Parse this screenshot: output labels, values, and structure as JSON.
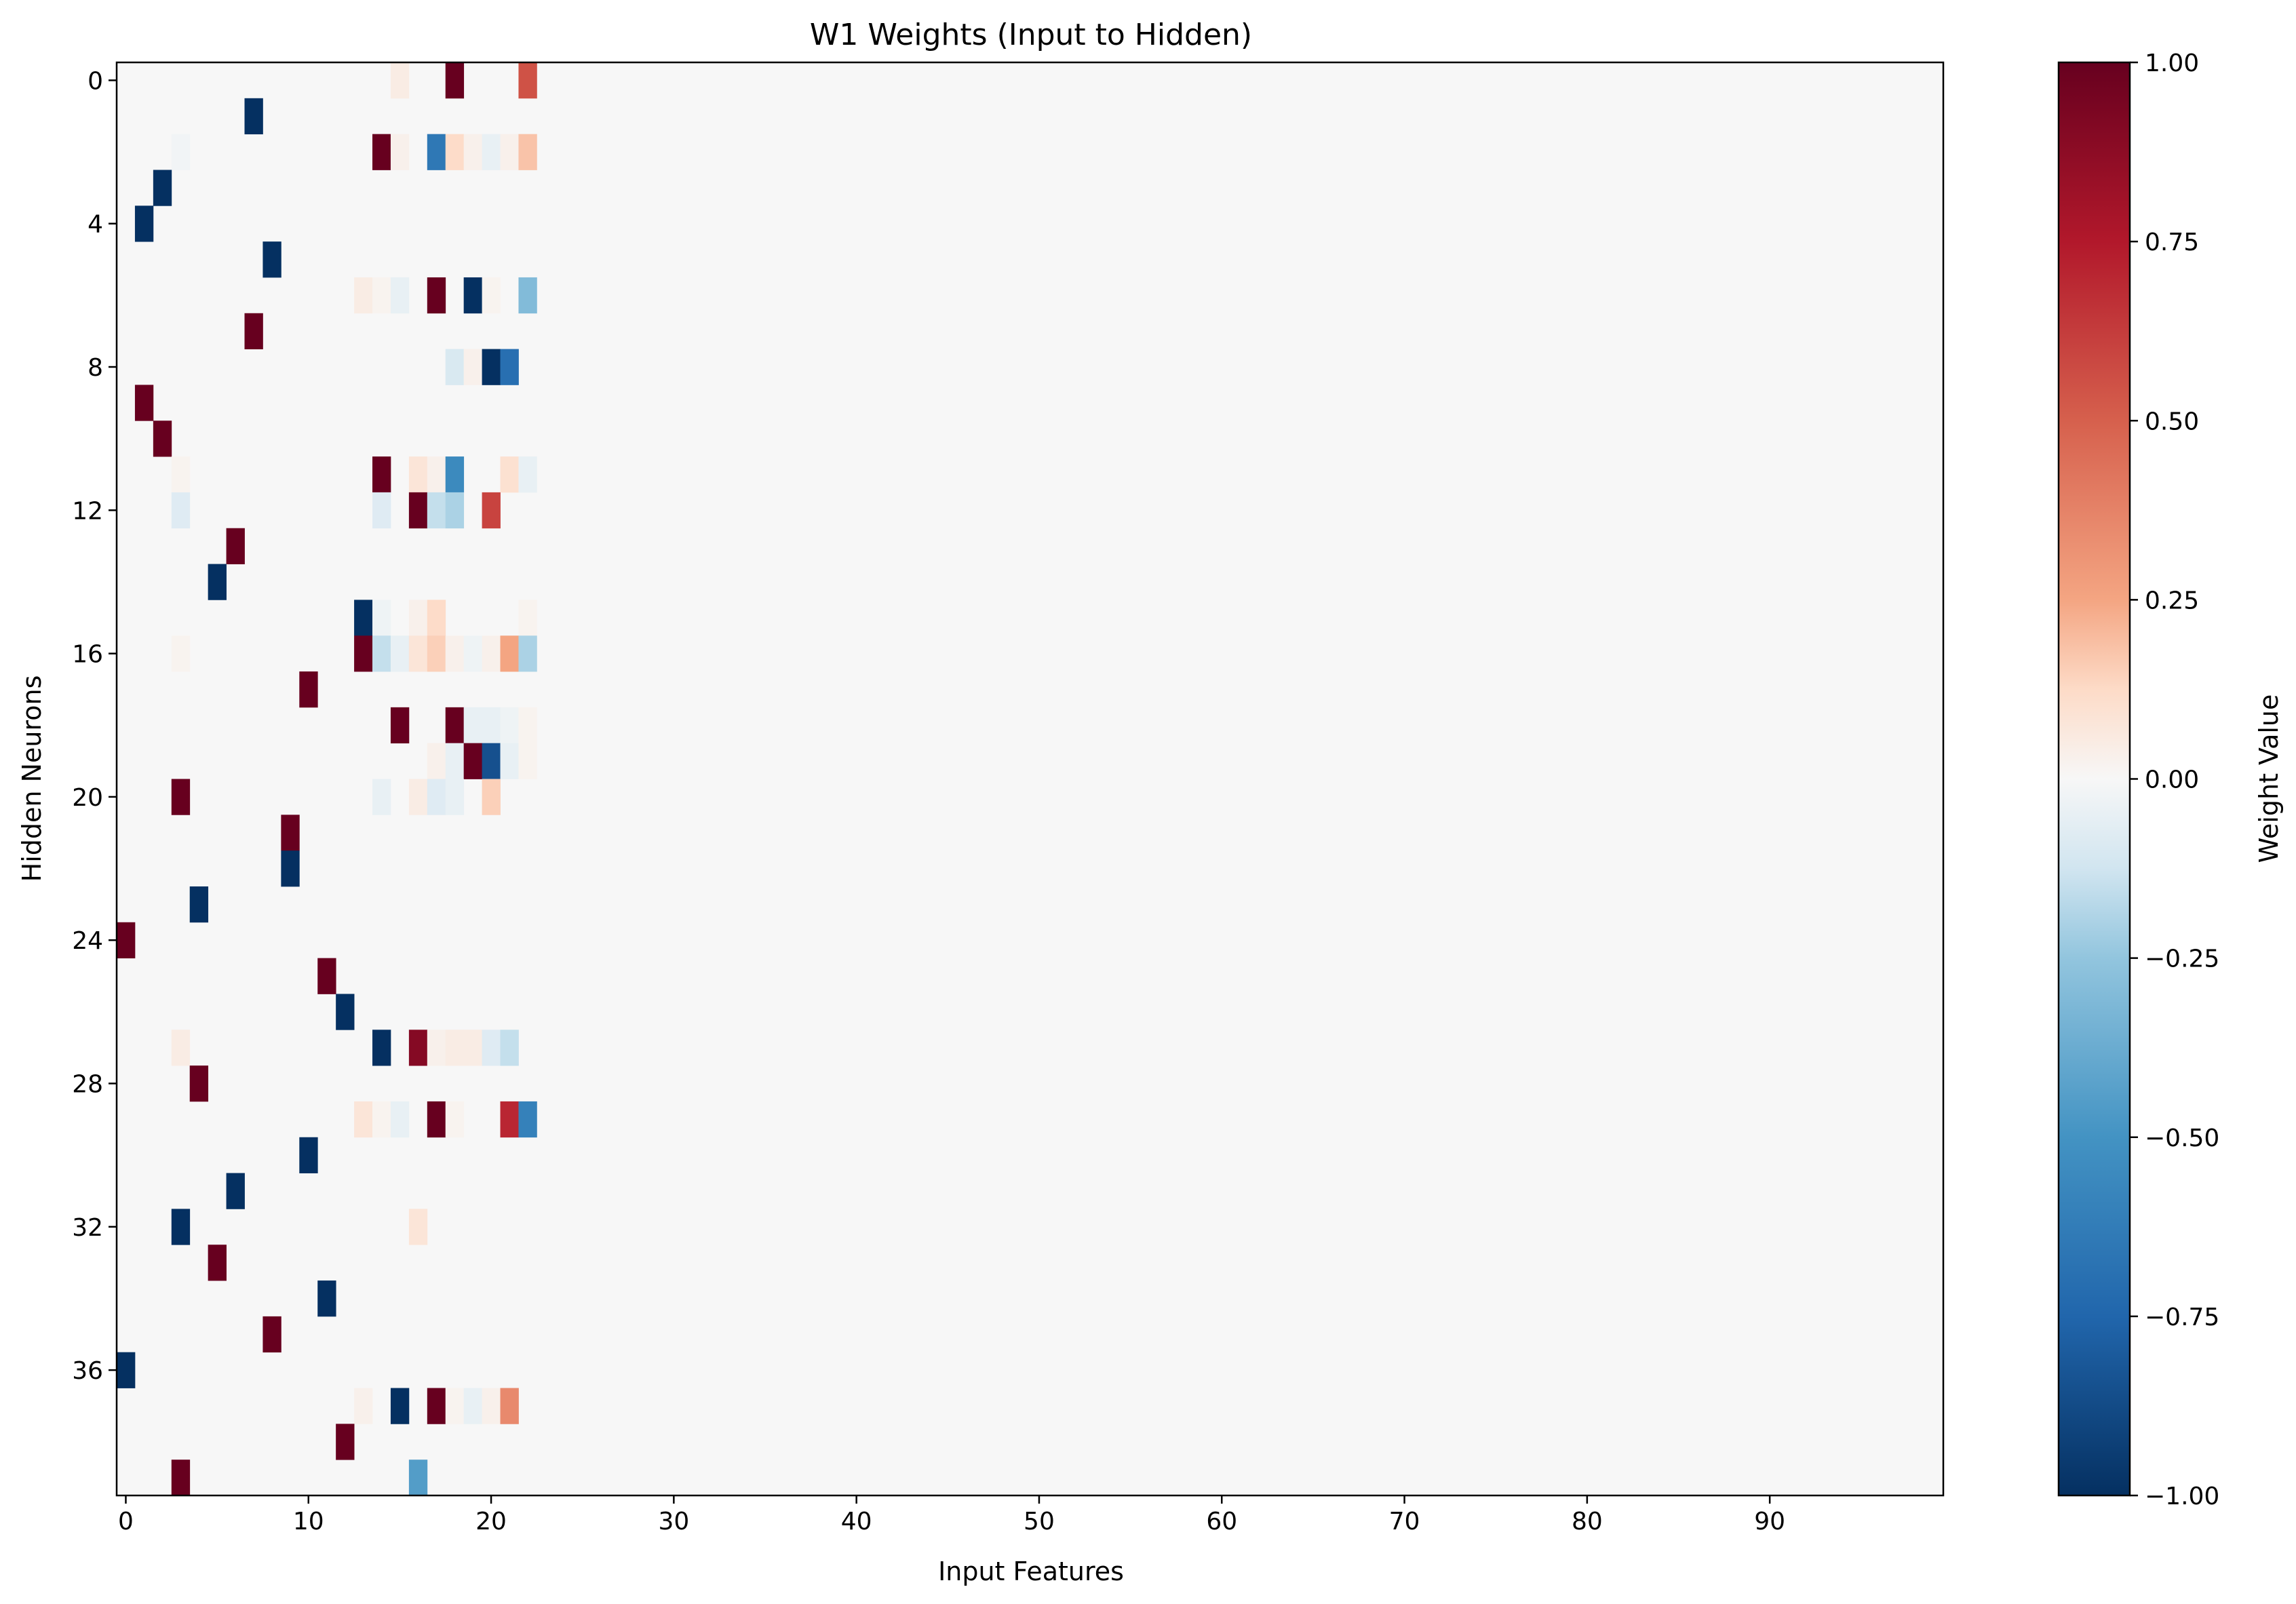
{
  "chart_data": {
    "type": "heatmap",
    "title": "W1 Weights (Input to Hidden)",
    "xlabel": "Input Features",
    "ylabel": "Hidden Neurons",
    "x_ticks": [
      0,
      10,
      20,
      30,
      40,
      50,
      60,
      70,
      80,
      90
    ],
    "y_ticks": [
      0,
      4,
      8,
      12,
      16,
      20,
      24,
      28,
      32,
      36
    ],
    "n_cols": 100,
    "n_rows": 40,
    "background_value": 0.0,
    "colormap": "RdBu_r",
    "vmin": -1.0,
    "vmax": 1.0,
    "colorbar": {
      "label": "Weight Value",
      "ticks": [
        "−1.00",
        "−0.75",
        "−0.50",
        "−0.25",
        "0.00",
        "0.25",
        "0.50",
        "0.75",
        "1.00"
      ],
      "tick_values": [
        -1.0,
        -0.75,
        -0.5,
        -0.25,
        0.0,
        0.25,
        0.5,
        0.75,
        1.0
      ]
    },
    "cells": [
      {
        "row": 0,
        "col": 15,
        "value": 0.05
      },
      {
        "row": 0,
        "col": 18,
        "value": 1.0
      },
      {
        "row": 0,
        "col": 22,
        "value": 0.55
      },
      {
        "row": 1,
        "col": 7,
        "value": -1.0
      },
      {
        "row": 2,
        "col": 3,
        "value": -0.02
      },
      {
        "row": 2,
        "col": 14,
        "value": 1.0
      },
      {
        "row": 2,
        "col": 15,
        "value": 0.03
      },
      {
        "row": 2,
        "col": 17,
        "value": -0.65
      },
      {
        "row": 2,
        "col": 18,
        "value": 0.12
      },
      {
        "row": 2,
        "col": 19,
        "value": 0.03
      },
      {
        "row": 2,
        "col": 20,
        "value": -0.05
      },
      {
        "row": 2,
        "col": 21,
        "value": 0.03
      },
      {
        "row": 2,
        "col": 22,
        "value": 0.18
      },
      {
        "row": 3,
        "col": 2,
        "value": -1.0
      },
      {
        "row": 4,
        "col": 1,
        "value": -1.0
      },
      {
        "row": 5,
        "col": 8,
        "value": -1.0
      },
      {
        "row": 6,
        "col": 13,
        "value": 0.05
      },
      {
        "row": 6,
        "col": 14,
        "value": 0.02
      },
      {
        "row": 6,
        "col": 15,
        "value": -0.05
      },
      {
        "row": 6,
        "col": 17,
        "value": 1.0
      },
      {
        "row": 6,
        "col": 19,
        "value": -1.0
      },
      {
        "row": 6,
        "col": 20,
        "value": 0.02
      },
      {
        "row": 6,
        "col": 22,
        "value": -0.3
      },
      {
        "row": 7,
        "col": 7,
        "value": 1.0
      },
      {
        "row": 8,
        "col": 18,
        "value": -0.1
      },
      {
        "row": 8,
        "col": 19,
        "value": 0.03
      },
      {
        "row": 8,
        "col": 20,
        "value": -1.0
      },
      {
        "row": 8,
        "col": 21,
        "value": -0.7
      },
      {
        "row": 9,
        "col": 1,
        "value": 1.0
      },
      {
        "row": 10,
        "col": 2,
        "value": 1.0
      },
      {
        "row": 11,
        "col": 3,
        "value": 0.02
      },
      {
        "row": 11,
        "col": 14,
        "value": 1.0
      },
      {
        "row": 11,
        "col": 16,
        "value": 0.08
      },
      {
        "row": 11,
        "col": 17,
        "value": 0.03
      },
      {
        "row": 11,
        "col": 18,
        "value": -0.55
      },
      {
        "row": 11,
        "col": 21,
        "value": 0.1
      },
      {
        "row": 11,
        "col": 22,
        "value": -0.05
      },
      {
        "row": 12,
        "col": 3,
        "value": -0.08
      },
      {
        "row": 12,
        "col": 14,
        "value": -0.08
      },
      {
        "row": 12,
        "col": 16,
        "value": 1.0
      },
      {
        "row": 12,
        "col": 17,
        "value": -0.15
      },
      {
        "row": 12,
        "col": 18,
        "value": -0.2
      },
      {
        "row": 12,
        "col": 20,
        "value": 0.6
      },
      {
        "row": 13,
        "col": 6,
        "value": 1.0
      },
      {
        "row": 14,
        "col": 5,
        "value": -1.0
      },
      {
        "row": 15,
        "col": 13,
        "value": -1.0
      },
      {
        "row": 15,
        "col": 14,
        "value": -0.03
      },
      {
        "row": 15,
        "col": 16,
        "value": 0.03
      },
      {
        "row": 15,
        "col": 17,
        "value": 0.12
      },
      {
        "row": 15,
        "col": 22,
        "value": 0.02
      },
      {
        "row": 16,
        "col": 3,
        "value": 0.02
      },
      {
        "row": 16,
        "col": 13,
        "value": 1.0
      },
      {
        "row": 16,
        "col": 14,
        "value": -0.15
      },
      {
        "row": 16,
        "col": 15,
        "value": -0.05
      },
      {
        "row": 16,
        "col": 16,
        "value": 0.08
      },
      {
        "row": 16,
        "col": 17,
        "value": 0.15
      },
      {
        "row": 16,
        "col": 18,
        "value": 0.03
      },
      {
        "row": 16,
        "col": 19,
        "value": -0.03
      },
      {
        "row": 16,
        "col": 20,
        "value": 0.03
      },
      {
        "row": 16,
        "col": 21,
        "value": 0.25
      },
      {
        "row": 16,
        "col": 22,
        "value": -0.2
      },
      {
        "row": 17,
        "col": 10,
        "value": 1.0
      },
      {
        "row": 18,
        "col": 15,
        "value": 1.0
      },
      {
        "row": 18,
        "col": 18,
        "value": 1.0
      },
      {
        "row": 18,
        "col": 19,
        "value": -0.05
      },
      {
        "row": 18,
        "col": 20,
        "value": -0.05
      },
      {
        "row": 18,
        "col": 21,
        "value": -0.03
      },
      {
        "row": 18,
        "col": 22,
        "value": 0.02
      },
      {
        "row": 19,
        "col": 17,
        "value": 0.03
      },
      {
        "row": 19,
        "col": 18,
        "value": -0.05
      },
      {
        "row": 19,
        "col": 19,
        "value": 1.0
      },
      {
        "row": 19,
        "col": 20,
        "value": -0.85
      },
      {
        "row": 19,
        "col": 21,
        "value": -0.05
      },
      {
        "row": 19,
        "col": 22,
        "value": 0.02
      },
      {
        "row": 20,
        "col": 3,
        "value": 1.0
      },
      {
        "row": 20,
        "col": 14,
        "value": -0.05
      },
      {
        "row": 20,
        "col": 16,
        "value": 0.05
      },
      {
        "row": 20,
        "col": 17,
        "value": -0.08
      },
      {
        "row": 20,
        "col": 18,
        "value": -0.05
      },
      {
        "row": 20,
        "col": 20,
        "value": 0.15
      },
      {
        "row": 21,
        "col": 9,
        "value": 1.0
      },
      {
        "row": 22,
        "col": 9,
        "value": -1.0
      },
      {
        "row": 23,
        "col": 4,
        "value": -1.0
      },
      {
        "row": 24,
        "col": 0,
        "value": 1.0
      },
      {
        "row": 25,
        "col": 11,
        "value": 1.0
      },
      {
        "row": 26,
        "col": 12,
        "value": -1.0
      },
      {
        "row": 27,
        "col": 3,
        "value": 0.05
      },
      {
        "row": 27,
        "col": 14,
        "value": -1.0
      },
      {
        "row": 27,
        "col": 16,
        "value": 0.9
      },
      {
        "row": 27,
        "col": 17,
        "value": 0.03
      },
      {
        "row": 27,
        "col": 18,
        "value": 0.05
      },
      {
        "row": 27,
        "col": 19,
        "value": 0.05
      },
      {
        "row": 27,
        "col": 20,
        "value": -0.08
      },
      {
        "row": 27,
        "col": 21,
        "value": -0.15
      },
      {
        "row": 28,
        "col": 4,
        "value": 1.0
      },
      {
        "row": 29,
        "col": 13,
        "value": 0.08
      },
      {
        "row": 29,
        "col": 14,
        "value": 0.02
      },
      {
        "row": 29,
        "col": 15,
        "value": -0.05
      },
      {
        "row": 29,
        "col": 17,
        "value": 1.0
      },
      {
        "row": 29,
        "col": 18,
        "value": 0.02
      },
      {
        "row": 29,
        "col": 21,
        "value": 0.7
      },
      {
        "row": 29,
        "col": 22,
        "value": -0.6
      },
      {
        "row": 30,
        "col": 10,
        "value": -1.0
      },
      {
        "row": 31,
        "col": 6,
        "value": -1.0
      },
      {
        "row": 32,
        "col": 3,
        "value": -1.0
      },
      {
        "row": 32,
        "col": 16,
        "value": 0.08
      },
      {
        "row": 33,
        "col": 5,
        "value": 1.0
      },
      {
        "row": 34,
        "col": 11,
        "value": -1.0
      },
      {
        "row": 35,
        "col": 8,
        "value": 1.0
      },
      {
        "row": 36,
        "col": 0,
        "value": -1.0
      },
      {
        "row": 37,
        "col": 13,
        "value": 0.03
      },
      {
        "row": 37,
        "col": 15,
        "value": -1.0
      },
      {
        "row": 37,
        "col": 17,
        "value": 1.0
      },
      {
        "row": 37,
        "col": 18,
        "value": 0.02
      },
      {
        "row": 37,
        "col": 19,
        "value": -0.05
      },
      {
        "row": 37,
        "col": 20,
        "value": 0.03
      },
      {
        "row": 37,
        "col": 21,
        "value": 0.35
      },
      {
        "row": 38,
        "col": 12,
        "value": 1.0
      },
      {
        "row": 39,
        "col": 3,
        "value": 1.0
      },
      {
        "row": 39,
        "col": 16,
        "value": -0.45
      }
    ]
  }
}
